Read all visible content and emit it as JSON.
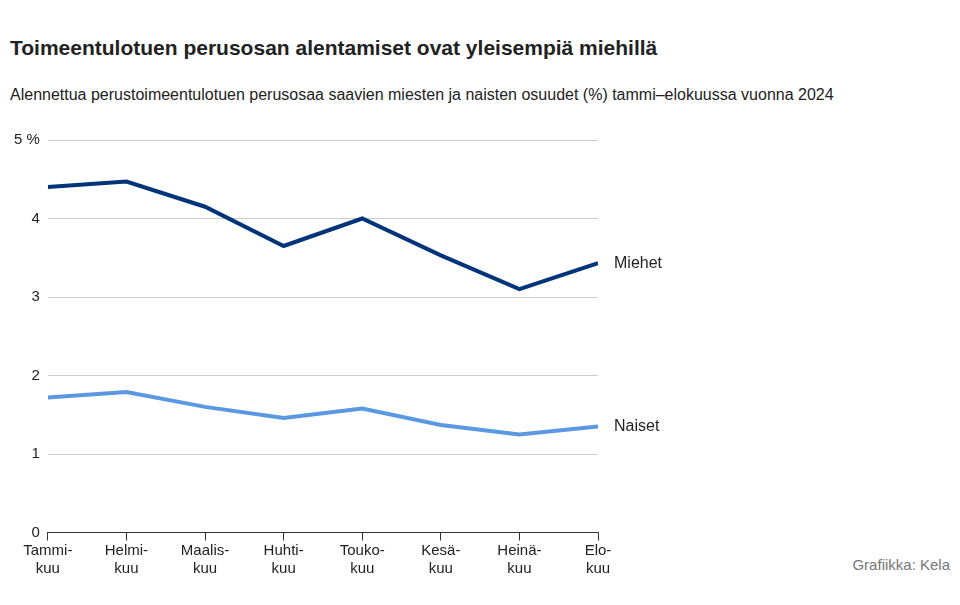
{
  "chart_data": {
    "type": "line",
    "title": "Toimeentulotuen perusosan alentamiset ovat yleisempiä miehillä",
    "subtitle": "Alennettua perustoimeentulotuen perusosaa saavien miesten ja naisten osuudet (%) tammi–elokuussa vuonna 2024",
    "source": "Grafiikka: Kela",
    "categories": [
      [
        "Tammi-",
        "kuu"
      ],
      [
        "Helmi-",
        "kuu"
      ],
      [
        "Maalis-",
        "kuu"
      ],
      [
        "Huhti-",
        "kuu"
      ],
      [
        "Touko-",
        "kuu"
      ],
      [
        "Kesä-",
        "kuu"
      ],
      [
        "Heinä-",
        "kuu"
      ],
      [
        "Elo-",
        "kuu"
      ]
    ],
    "series": [
      {
        "name": "Miehet",
        "color": "#00347a",
        "values": [
          4.4,
          4.47,
          4.15,
          3.65,
          4.0,
          3.53,
          3.1,
          3.43
        ]
      },
      {
        "name": "Naiset",
        "color": "#5a98e2",
        "values": [
          1.72,
          1.79,
          1.6,
          1.46,
          1.58,
          1.37,
          1.25,
          1.35
        ]
      }
    ],
    "ylim": [
      0,
      5
    ],
    "yticks": [
      0,
      1,
      2,
      3,
      4,
      {
        "value": 5,
        "label": "5 %"
      }
    ],
    "grid": true
  }
}
